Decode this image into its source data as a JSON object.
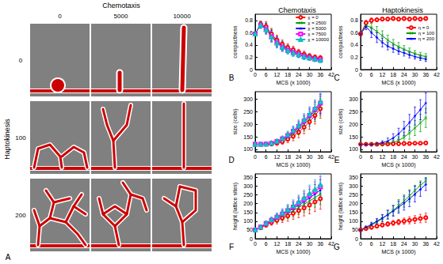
{
  "panel_A": {
    "label": "A",
    "column_title": "Chemotaxis",
    "column_values": [
      "0",
      "5000",
      "10000"
    ],
    "row_title": "Haptokinesis",
    "row_values": [
      "0",
      "100",
      "200"
    ]
  },
  "chart_data": [
    {
      "type": "line",
      "panel_label": "B",
      "title": "Chemotaxis",
      "x_label": "MCS (x 1000)",
      "y_label": "compactness",
      "x": [
        0,
        3,
        6,
        9,
        12,
        15,
        18,
        21,
        24,
        27,
        30,
        33,
        36
      ],
      "xlim": [
        0,
        42
      ],
      "xticks": [
        0,
        6,
        12,
        18,
        24,
        30,
        36,
        42
      ],
      "ylim": [
        0,
        0.9
      ],
      "yticks": [
        0,
        0.2,
        0.4,
        0.6,
        0.8
      ],
      "grid": false,
      "legend": "upper right",
      "series": [
        {
          "name": "χ = 0",
          "color": "#ff0000",
          "marker": "circle",
          "values": [
            0.58,
            0.74,
            0.7,
            0.58,
            0.48,
            0.41,
            0.36,
            0.32,
            0.28,
            0.25,
            0.22,
            0.2,
            0.19
          ],
          "errors": [
            0.03,
            0.05,
            0.08,
            0.09,
            0.08,
            0.07,
            0.06,
            0.06,
            0.05,
            0.05,
            0.04,
            0.04,
            0.04
          ]
        },
        {
          "name": "χ = 2500",
          "color": "#00a000",
          "marker": "x",
          "values": [
            0.58,
            0.73,
            0.68,
            0.56,
            0.46,
            0.39,
            0.34,
            0.3,
            0.26,
            0.23,
            0.21,
            0.19,
            0.17
          ],
          "errors": [
            0.03,
            0.05,
            0.08,
            0.09,
            0.08,
            0.07,
            0.06,
            0.06,
            0.05,
            0.05,
            0.04,
            0.04,
            0.04
          ]
        },
        {
          "name": "χ = 5000",
          "color": "#0000ff",
          "marker": "star",
          "values": [
            0.58,
            0.73,
            0.67,
            0.55,
            0.45,
            0.38,
            0.33,
            0.29,
            0.25,
            0.22,
            0.2,
            0.18,
            0.17
          ],
          "errors": [
            0.03,
            0.05,
            0.08,
            0.09,
            0.08,
            0.07,
            0.06,
            0.06,
            0.05,
            0.05,
            0.04,
            0.04,
            0.04
          ]
        },
        {
          "name": "χ = 7500",
          "color": "#ff00ff",
          "marker": "square",
          "values": [
            0.58,
            0.72,
            0.66,
            0.54,
            0.44,
            0.37,
            0.32,
            0.28,
            0.25,
            0.22,
            0.19,
            0.17,
            0.16
          ],
          "errors": [
            0.03,
            0.05,
            0.08,
            0.09,
            0.08,
            0.07,
            0.06,
            0.06,
            0.05,
            0.05,
            0.04,
            0.04,
            0.04
          ]
        },
        {
          "name": "χ = 10000",
          "color": "#00c0c0",
          "marker": "triangle",
          "values": [
            0.58,
            0.72,
            0.65,
            0.53,
            0.43,
            0.36,
            0.31,
            0.27,
            0.24,
            0.21,
            0.19,
            0.17,
            0.15
          ],
          "errors": [
            0.03,
            0.05,
            0.08,
            0.09,
            0.08,
            0.07,
            0.06,
            0.06,
            0.05,
            0.05,
            0.04,
            0.04,
            0.04
          ]
        }
      ]
    },
    {
      "type": "line",
      "panel_label": "C",
      "title": "Haptokinesis",
      "x_label": "MCS (x 1000)",
      "y_label": "compactness",
      "x": [
        0,
        3,
        6,
        9,
        12,
        15,
        18,
        21,
        24,
        27,
        30,
        33,
        36
      ],
      "xlim": [
        0,
        42
      ],
      "xticks": [
        0,
        6,
        12,
        18,
        24,
        30,
        36,
        42
      ],
      "ylim": [
        0,
        0.9
      ],
      "yticks": [
        0,
        0.2,
        0.4,
        0.6,
        0.8
      ],
      "grid": false,
      "legend": "right",
      "series": [
        {
          "name": "η = 0",
          "color": "#ff0000",
          "marker": "circle",
          "values": [
            0.58,
            0.76,
            0.8,
            0.81,
            0.82,
            0.82,
            0.83,
            0.82,
            0.83,
            0.82,
            0.83,
            0.82,
            0.83
          ],
          "errors": [
            0.03,
            0.04,
            0.04,
            0.03,
            0.03,
            0.03,
            0.03,
            0.03,
            0.03,
            0.03,
            0.03,
            0.03,
            0.03
          ]
        },
        {
          "name": "η = 100",
          "color": "#00a000",
          "marker": "x",
          "values": [
            0.58,
            0.72,
            0.68,
            0.62,
            0.55,
            0.48,
            0.42,
            0.37,
            0.33,
            0.29,
            0.26,
            0.23,
            0.21
          ],
          "errors": [
            0.03,
            0.05,
            0.07,
            0.08,
            0.08,
            0.08,
            0.07,
            0.07,
            0.06,
            0.06,
            0.05,
            0.05,
            0.05
          ]
        },
        {
          "name": "η = 200",
          "color": "#0000ff",
          "marker": "star",
          "values": [
            0.58,
            0.7,
            0.6,
            0.52,
            0.44,
            0.38,
            0.34,
            0.3,
            0.27,
            0.24,
            0.21,
            0.19,
            0.17
          ],
          "errors": [
            0.03,
            0.05,
            0.08,
            0.08,
            0.07,
            0.06,
            0.06,
            0.05,
            0.05,
            0.05,
            0.04,
            0.04,
            0.04
          ]
        }
      ]
    },
    {
      "type": "line",
      "panel_label": "D",
      "x_label": "MCS (x 1000)",
      "y_label": "size (cells)",
      "x": [
        0,
        3,
        6,
        9,
        12,
        15,
        18,
        21,
        24,
        27,
        30,
        33,
        36
      ],
      "xlim": [
        0,
        42
      ],
      "xticks": [
        0,
        6,
        12,
        18,
        24,
        30,
        36,
        42
      ],
      "ylim": [
        90,
        330
      ],
      "yticks": [
        100,
        150,
        200,
        250,
        300
      ],
      "grid": false,
      "series": [
        {
          "color": "#ff0000",
          "marker": "circle",
          "values": [
            120,
            120,
            120,
            121,
            124,
            130,
            140,
            152,
            168,
            188,
            210,
            235,
            262
          ],
          "errors": [
            2,
            2,
            3,
            5,
            8,
            10,
            14,
            18,
            22,
            26,
            30,
            34,
            38
          ]
        },
        {
          "color": "#00a000",
          "marker": "x",
          "values": [
            120,
            120,
            120,
            122,
            127,
            135,
            147,
            162,
            180,
            200,
            222,
            246,
            272
          ],
          "errors": [
            2,
            2,
            3,
            5,
            8,
            10,
            14,
            18,
            22,
            26,
            30,
            34,
            38
          ]
        },
        {
          "color": "#0000ff",
          "marker": "star",
          "values": [
            120,
            120,
            121,
            123,
            129,
            138,
            151,
            167,
            186,
            207,
            230,
            254,
            280
          ],
          "errors": [
            2,
            2,
            3,
            5,
            8,
            10,
            14,
            18,
            22,
            26,
            30,
            34,
            38
          ]
        },
        {
          "color": "#ff00ff",
          "marker": "square",
          "values": [
            120,
            120,
            121,
            124,
            131,
            141,
            155,
            172,
            191,
            212,
            235,
            259,
            284
          ],
          "errors": [
            2,
            2,
            3,
            5,
            8,
            10,
            14,
            18,
            22,
            26,
            30,
            34,
            38
          ]
        },
        {
          "color": "#00c0c0",
          "marker": "triangle",
          "values": [
            120,
            120,
            121,
            125,
            132,
            143,
            158,
            175,
            195,
            217,
            240,
            264,
            290
          ],
          "errors": [
            2,
            2,
            3,
            5,
            8,
            10,
            14,
            18,
            22,
            26,
            30,
            34,
            38
          ]
        }
      ]
    },
    {
      "type": "line",
      "panel_label": "E",
      "x_label": "MCS (x 1000)",
      "y_label": "size (cells)",
      "x": [
        0,
        3,
        6,
        9,
        12,
        15,
        18,
        21,
        24,
        27,
        30,
        33,
        36
      ],
      "xlim": [
        0,
        42
      ],
      "xticks": [
        0,
        6,
        12,
        18,
        24,
        30,
        36,
        42
      ],
      "ylim": [
        90,
        330
      ],
      "yticks": [
        100,
        150,
        200,
        250,
        300
      ],
      "grid": false,
      "series": [
        {
          "color": "#ff0000",
          "marker": "circle",
          "values": [
            120,
            120,
            120,
            120,
            121,
            121,
            122,
            122,
            123,
            123,
            124,
            124,
            125
          ],
          "errors": [
            2,
            2,
            2,
            2,
            2,
            2,
            2,
            3,
            3,
            3,
            3,
            3,
            3
          ]
        },
        {
          "color": "#00a000",
          "marker": "x",
          "values": [
            120,
            120,
            120,
            120,
            121,
            123,
            127,
            135,
            148,
            165,
            185,
            205,
            225
          ],
          "errors": [
            2,
            2,
            2,
            3,
            4,
            6,
            10,
            15,
            20,
            25,
            30,
            35,
            38
          ]
        },
        {
          "color": "#0000ff",
          "marker": "star",
          "values": [
            120,
            120,
            120,
            122,
            126,
            133,
            145,
            162,
            183,
            207,
            233,
            258,
            285
          ],
          "errors": [
            2,
            2,
            3,
            5,
            8,
            12,
            17,
            22,
            28,
            32,
            36,
            40,
            40
          ]
        }
      ]
    },
    {
      "type": "line",
      "panel_label": "F",
      "x_label": "MCS (x 1000)",
      "y_label": "height (lattice sites)",
      "x": [
        0,
        3,
        6,
        9,
        12,
        15,
        18,
        21,
        24,
        27,
        30,
        33,
        36
      ],
      "xlim": [
        0,
        42
      ],
      "xticks": [
        0,
        6,
        12,
        18,
        24,
        30,
        36,
        42
      ],
      "ylim": [
        0,
        370
      ],
      "yticks": [
        0,
        50,
        100,
        150,
        200,
        250,
        300,
        350
      ],
      "grid": false,
      "series": [
        {
          "color": "#ff0000",
          "marker": "circle",
          "values": [
            50,
            62,
            78,
            92,
            105,
            118,
            130,
            145,
            160,
            175,
            192,
            210,
            228
          ],
          "errors": [
            5,
            8,
            12,
            15,
            20,
            25,
            30,
            35,
            40,
            45,
            50,
            55,
            60
          ]
        },
        {
          "color": "#00a000",
          "marker": "x",
          "values": [
            50,
            64,
            82,
            98,
            113,
            128,
            144,
            160,
            178,
            196,
            215,
            235,
            255
          ],
          "errors": [
            5,
            8,
            12,
            15,
            20,
            25,
            30,
            35,
            40,
            45,
            50,
            55,
            60
          ]
        },
        {
          "color": "#0000ff",
          "marker": "star",
          "values": [
            50,
            65,
            85,
            102,
            119,
            136,
            154,
            172,
            192,
            212,
            233,
            255,
            278
          ],
          "errors": [
            5,
            8,
            12,
            15,
            20,
            25,
            30,
            35,
            40,
            45,
            50,
            55,
            60
          ]
        },
        {
          "color": "#ff00ff",
          "marker": "square",
          "values": [
            50,
            66,
            87,
            105,
            123,
            141,
            160,
            180,
            201,
            223,
            246,
            270,
            295
          ],
          "errors": [
            5,
            8,
            12,
            15,
            20,
            25,
            30,
            35,
            40,
            45,
            50,
            55,
            60
          ]
        },
        {
          "color": "#00c0c0",
          "marker": "triangle",
          "values": [
            50,
            67,
            89,
            108,
            127,
            146,
            166,
            187,
            209,
            232,
            256,
            281,
            307
          ],
          "errors": [
            5,
            8,
            12,
            15,
            20,
            25,
            30,
            35,
            40,
            45,
            50,
            55,
            60
          ]
        }
      ]
    },
    {
      "type": "line",
      "panel_label": "G",
      "x_label": "MCS (x 1000)",
      "y_label": "height (lattice sites)",
      "x": [
        0,
        3,
        6,
        9,
        12,
        15,
        18,
        21,
        24,
        27,
        30,
        33,
        36
      ],
      "xlim": [
        0,
        42
      ],
      "xticks": [
        0,
        6,
        12,
        18,
        24,
        30,
        36,
        42
      ],
      "ylim": [
        0,
        370
      ],
      "yticks": [
        0,
        50,
        100,
        150,
        200,
        250,
        300,
        350
      ],
      "grid": false,
      "series": [
        {
          "color": "#ff0000",
          "marker": "circle",
          "values": [
            50,
            58,
            65,
            72,
            78,
            84,
            90,
            95,
            100,
            105,
            110,
            115,
            120
          ],
          "errors": [
            3,
            5,
            6,
            8,
            10,
            12,
            14,
            16,
            18,
            20,
            22,
            24,
            26
          ]
        },
        {
          "color": "#00a000",
          "marker": "x",
          "values": [
            50,
            62,
            78,
            95,
            115,
            138,
            162,
            188,
            215,
            245,
            275,
            305,
            330
          ],
          "errors": [
            5,
            8,
            12,
            15,
            20,
            25,
            30,
            35,
            35,
            35,
            30,
            25,
            20
          ]
        },
        {
          "color": "#0000ff",
          "marker": "star",
          "values": [
            50,
            65,
            82,
            100,
            118,
            137,
            158,
            180,
            203,
            228,
            255,
            282,
            310
          ],
          "errors": [
            5,
            8,
            12,
            15,
            20,
            25,
            30,
            35,
            40,
            45,
            45,
            40,
            35
          ]
        }
      ]
    }
  ]
}
